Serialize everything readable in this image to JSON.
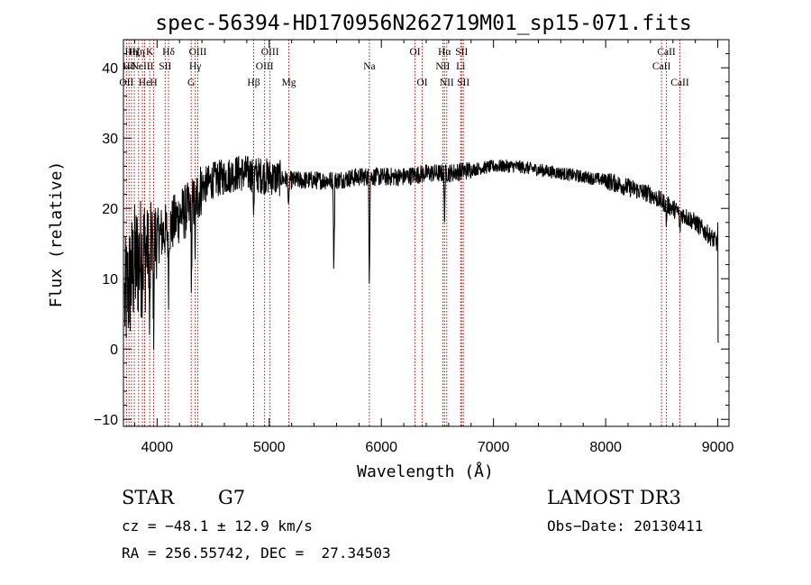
{
  "chart_data": {
    "type": "line",
    "title": "spec-56394-HD170956N262719M01_sp15-071.fits",
    "xlabel": "Wavelength (Å)",
    "ylabel": "Flux (relative)",
    "xlim": [
      3700,
      9100
    ],
    "ylim": [
      -11,
      44
    ],
    "x_ticks": [
      4000,
      5000,
      6000,
      7000,
      8000,
      9000
    ],
    "y_ticks": [
      -10,
      0,
      10,
      20,
      30,
      40
    ],
    "continuum": [
      {
        "x": 3700,
        "y": 6
      },
      {
        "x": 3800,
        "y": 12
      },
      {
        "x": 3900,
        "y": 14
      },
      {
        "x": 4000,
        "y": 16
      },
      {
        "x": 4100,
        "y": 17
      },
      {
        "x": 4200,
        "y": 19
      },
      {
        "x": 4300,
        "y": 20
      },
      {
        "x": 4400,
        "y": 23
      },
      {
        "x": 4500,
        "y": 24
      },
      {
        "x": 4600,
        "y": 24.5
      },
      {
        "x": 4700,
        "y": 25
      },
      {
        "x": 4800,
        "y": 25
      },
      {
        "x": 5000,
        "y": 24.5
      },
      {
        "x": 5200,
        "y": 24
      },
      {
        "x": 5400,
        "y": 24
      },
      {
        "x": 5600,
        "y": 24
      },
      {
        "x": 5800,
        "y": 24.5
      },
      {
        "x": 6000,
        "y": 24.5
      },
      {
        "x": 6200,
        "y": 24.5
      },
      {
        "x": 6400,
        "y": 25
      },
      {
        "x": 6600,
        "y": 25
      },
      {
        "x": 6800,
        "y": 25.5
      },
      {
        "x": 7000,
        "y": 26
      },
      {
        "x": 7200,
        "y": 26
      },
      {
        "x": 7400,
        "y": 25.5
      },
      {
        "x": 7600,
        "y": 25
      },
      {
        "x": 7800,
        "y": 24.5
      },
      {
        "x": 8000,
        "y": 24
      },
      {
        "x": 8200,
        "y": 23
      },
      {
        "x": 8400,
        "y": 22
      },
      {
        "x": 8600,
        "y": 20
      },
      {
        "x": 8800,
        "y": 18
      },
      {
        "x": 9000,
        "y": 15
      }
    ],
    "absorption_features": [
      {
        "x": 3934,
        "depth": 14
      },
      {
        "x": 3969,
        "depth": 12
      },
      {
        "x": 4102,
        "depth": 8
      },
      {
        "x": 4307,
        "depth": 11
      },
      {
        "x": 4340,
        "depth": 7
      },
      {
        "x": 4861,
        "depth": 5
      },
      {
        "x": 5173,
        "depth": 5
      },
      {
        "x": 5577,
        "depth": 17
      },
      {
        "x": 5893,
        "depth": 15
      },
      {
        "x": 6563,
        "depth": 7
      },
      {
        "x": 8542,
        "depth": 3
      },
      {
        "x": 8662,
        "depth": 3
      }
    ],
    "emission_spikes": [
      {
        "x": 5578,
        "height": 6
      },
      {
        "x": 9000,
        "height": 3
      }
    ],
    "line_markers": [
      {
        "x": 3727,
        "row": 3,
        "label": "OII"
      },
      {
        "x": 3750,
        "row": 2,
        "label": "Hθ"
      },
      {
        "x": 3771,
        "row": 1,
        "label": "Hη"
      },
      {
        "x": 3797,
        "row": 1,
        "label": "Hζ"
      },
      {
        "x": 3835,
        "row": 1,
        "label": "Hη"
      },
      {
        "x": 3869,
        "row": 2,
        "label": "NeIII"
      },
      {
        "x": 3889,
        "row": 3,
        "label": "He"
      },
      {
        "x": 3934,
        "row": 1,
        "label": "K"
      },
      {
        "x": 3969,
        "row": 3,
        "label": "H"
      },
      {
        "x": 4072,
        "row": 2,
        "label": "SII"
      },
      {
        "x": 4102,
        "row": 1,
        "label": "Hδ"
      },
      {
        "x": 4304,
        "row": 3,
        "label": "G"
      },
      {
        "x": 4340,
        "row": 2,
        "label": "Hγ"
      },
      {
        "x": 4363,
        "row": 1,
        "label": "OIII"
      },
      {
        "x": 4861,
        "row": 3,
        "label": "Hβ"
      },
      {
        "x": 4959,
        "row": 2,
        "label": "OIII"
      },
      {
        "x": 5007,
        "row": 1,
        "label": "OIII"
      },
      {
        "x": 5175,
        "row": 3,
        "label": "Mg"
      },
      {
        "x": 5893,
        "row": 2,
        "label": "Na"
      },
      {
        "x": 6300,
        "row": 1,
        "label": "OI"
      },
      {
        "x": 6364,
        "row": 3,
        "label": "OI"
      },
      {
        "x": 6548,
        "row": 2,
        "label": "NII"
      },
      {
        "x": 6563,
        "row": 1,
        "label": "Hα"
      },
      {
        "x": 6583,
        "row": 3,
        "label": "NII"
      },
      {
        "x": 6707,
        "row": 2,
        "label": "Li"
      },
      {
        "x": 6716,
        "row": 1,
        "label": "SII"
      },
      {
        "x": 6731,
        "row": 3,
        "label": "SII"
      },
      {
        "x": 8498,
        "row": 2,
        "label": "CaII"
      },
      {
        "x": 8542,
        "row": 1,
        "label": "CaII"
      },
      {
        "x": 8662,
        "row": 3,
        "label": "CaII"
      }
    ],
    "grid": false,
    "legend": "none"
  },
  "info": {
    "object_class": "STAR",
    "subclass": "G7",
    "survey": "LAMOST DR3",
    "redshift": "cz = −48.1 ± 12.9 km/s",
    "obs_date": "Obs−Date: 20130411",
    "coords": "RA = 256.55742, DEC =  27.34503"
  },
  "colors": {
    "spectrum": "#000000",
    "marker_lines": "#cc0000",
    "axes": "#000000"
  }
}
